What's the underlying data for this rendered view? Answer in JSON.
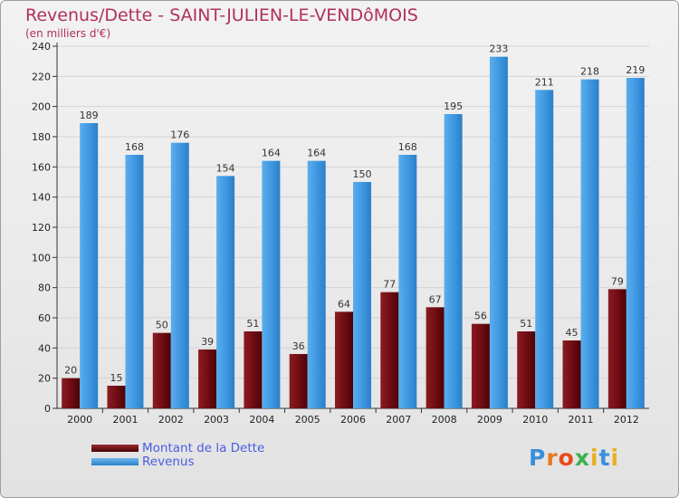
{
  "title": "Revenus/Dette - SAINT-JULIEN-LE-VENDôMOIS",
  "subtitle": "(en milliers d'€)",
  "brand": "Proxiti",
  "colors": {
    "dette": "#6e0c12",
    "revenus": "#3d96df",
    "title": "#b03060",
    "legend_text": "#4a5de0"
  },
  "chart_data": {
    "type": "bar",
    "title": "Revenus/Dette - SAINT-JULIEN-LE-VENDôMOIS",
    "ylabel": "(en milliers d'€)",
    "categories": [
      "2000",
      "2001",
      "2002",
      "2003",
      "2004",
      "2005",
      "2006",
      "2007",
      "2008",
      "2009",
      "2010",
      "2011",
      "2012"
    ],
    "series": [
      {
        "name": "Montant de la Dette",
        "color": "#6e0c12",
        "values": [
          20,
          15,
          50,
          39,
          51,
          36,
          64,
          77,
          67,
          56,
          51,
          45,
          79
        ]
      },
      {
        "name": "Revenus",
        "color": "#3d96df",
        "values": [
          189,
          168,
          176,
          154,
          164,
          164,
          150,
          168,
          195,
          233,
          211,
          218,
          219
        ]
      }
    ],
    "ylim": [
      0,
      240
    ],
    "yticks": [
      0,
      20,
      40,
      60,
      80,
      100,
      120,
      140,
      160,
      180,
      200,
      220,
      240
    ],
    "grid": true,
    "legend": "bottom-left",
    "data_labels": true
  }
}
